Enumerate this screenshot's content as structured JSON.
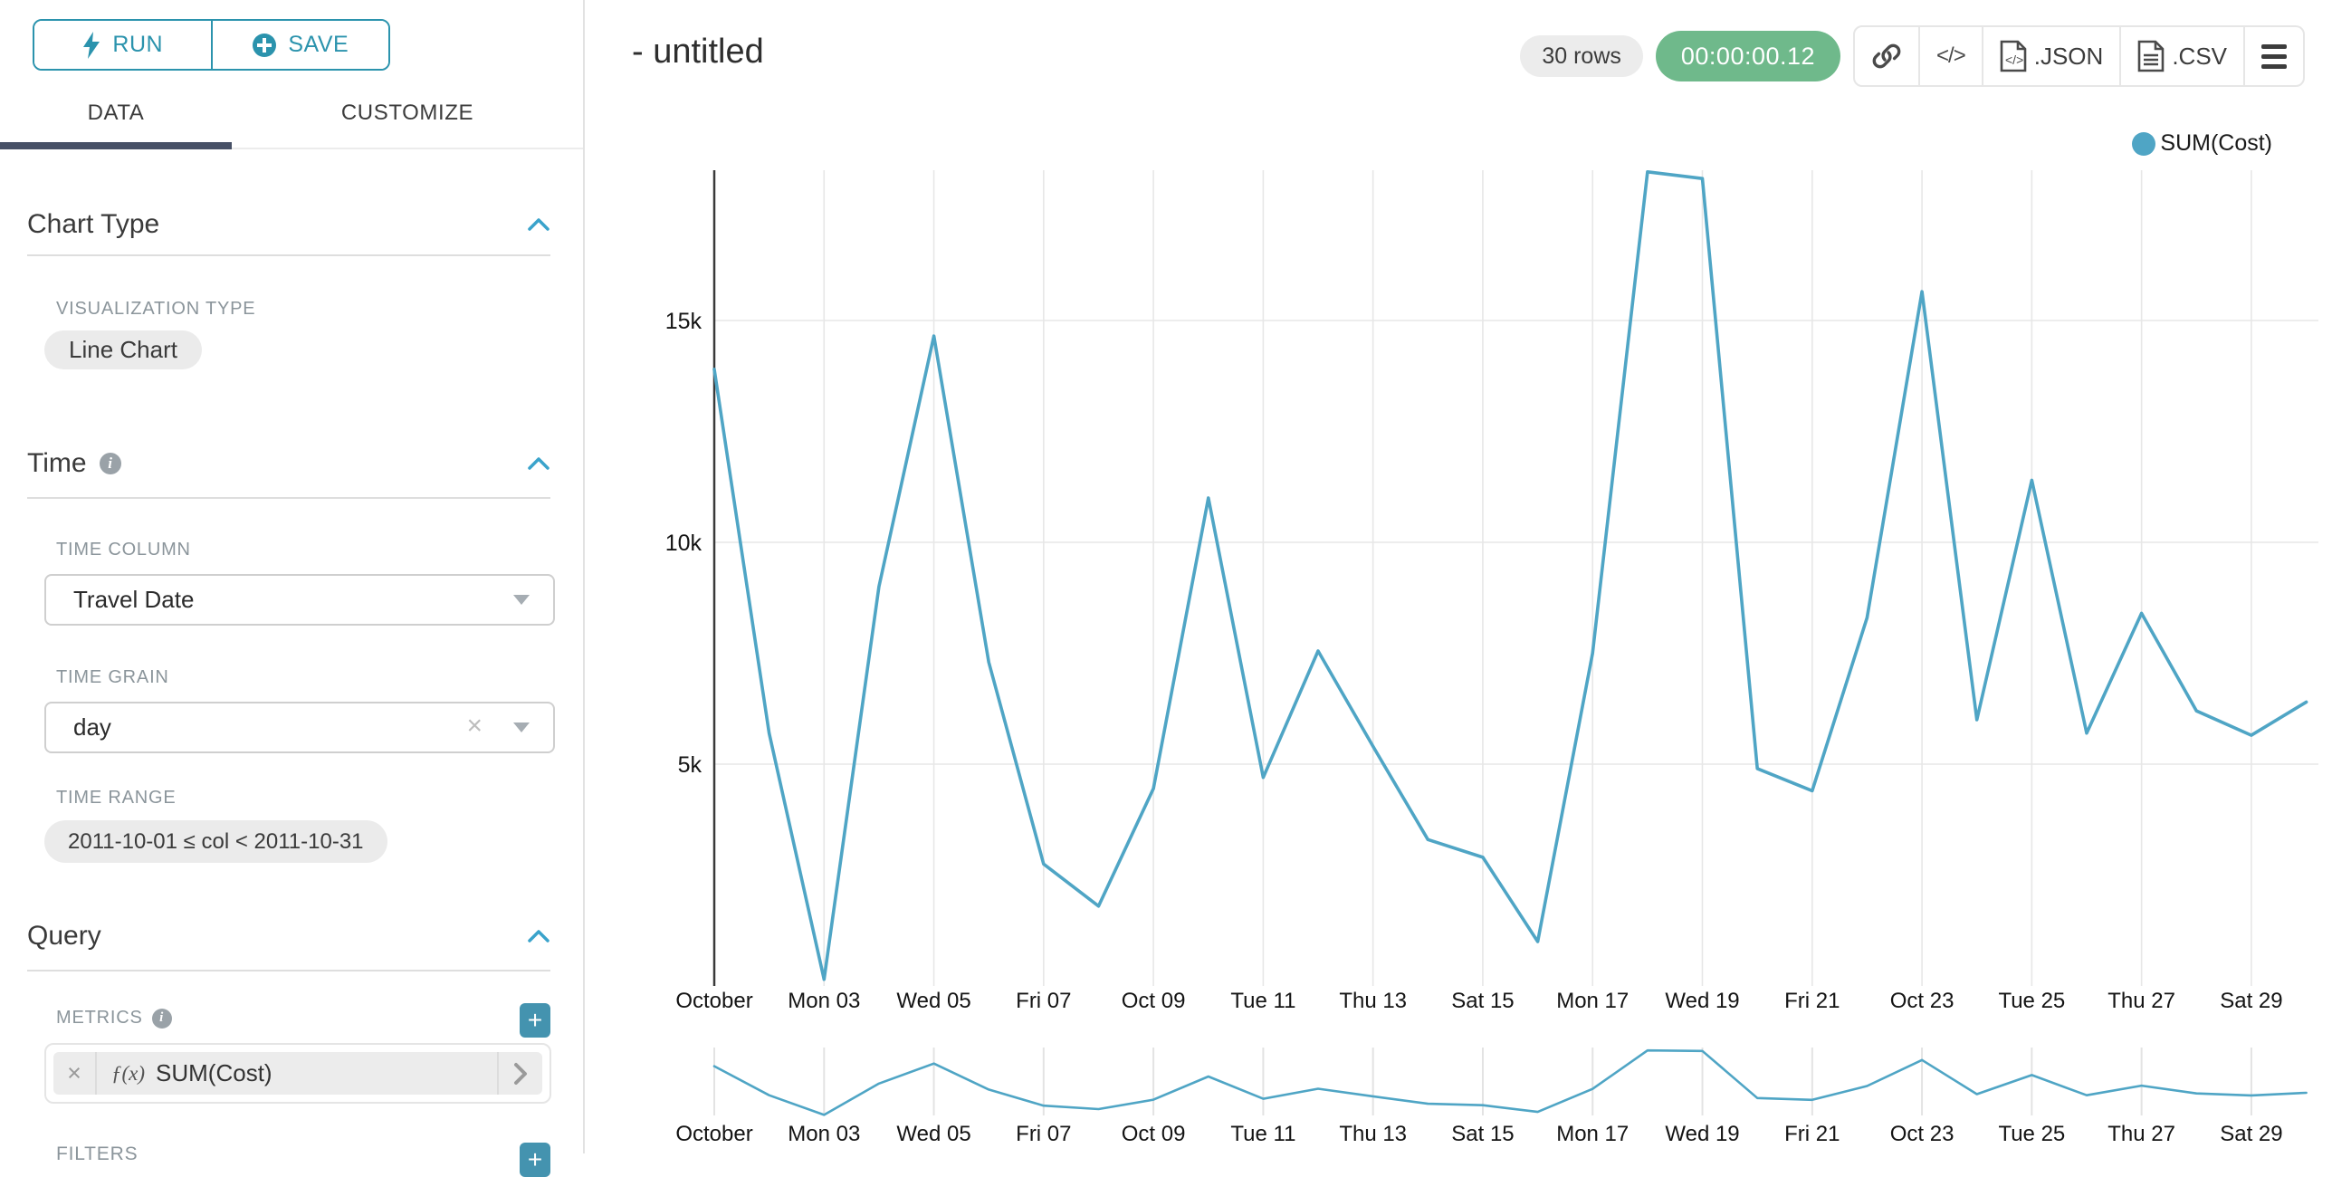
{
  "colors": {
    "accent_teal": "#2b93ad",
    "add_button_teal": "#4493af",
    "tab_underline_navy": "#475066",
    "timer_green": "#6fb98b",
    "series_line": "#4FA5C5"
  },
  "sidebar": {
    "run_button": {
      "label": "RUN"
    },
    "save_button": {
      "label": "SAVE"
    },
    "tabs": {
      "data": "DATA",
      "customize": "CUSTOMIZE"
    },
    "chart_type_section": {
      "title": "Chart Type",
      "visualization_type_label": "VISUALIZATION TYPE",
      "visualization_type_value": "Line Chart"
    },
    "time_section": {
      "title": "Time",
      "time_column_label": "TIME COLUMN",
      "time_column_value": "Travel Date",
      "time_grain_label": "TIME GRAIN",
      "time_grain_value": "day",
      "time_range_label": "TIME RANGE",
      "time_range_value": "2011-10-01 ≤ col < 2011-10-31"
    },
    "query_section": {
      "title": "Query",
      "metrics_label": "METRICS",
      "metric": {
        "prefix": "ƒ(x)",
        "name": "SUM(Cost)",
        "clear_glyph": "×"
      },
      "filters_label": "FILTERS",
      "add_glyph": "+"
    },
    "clear_glyph": "×"
  },
  "header": {
    "title": "- untitled",
    "row_count_badge": "30 rows",
    "timer_badge": "00:00:00.12",
    "toolbar": {
      "code_glyph": "</>",
      "json_label": ".JSON",
      "csv_label": ".CSV"
    }
  },
  "chart_data": {
    "type": "line",
    "title": "",
    "xlabel": "",
    "ylabel": "",
    "legend_position": "top-right",
    "grid": true,
    "has_range_brush_chart": true,
    "ylim": [
      0,
      18400
    ],
    "y_ticks": [
      {
        "label": "5k",
        "value": 5000
      },
      {
        "label": "10k",
        "value": 10000
      },
      {
        "label": "15k",
        "value": 15000
      }
    ],
    "x": [
      "2011-10-01",
      "2011-10-02",
      "2011-10-03",
      "2011-10-04",
      "2011-10-05",
      "2011-10-06",
      "2011-10-07",
      "2011-10-08",
      "2011-10-09",
      "2011-10-10",
      "2011-10-11",
      "2011-10-12",
      "2011-10-13",
      "2011-10-14",
      "2011-10-15",
      "2011-10-16",
      "2011-10-17",
      "2011-10-18",
      "2011-10-19",
      "2011-10-20",
      "2011-10-21",
      "2011-10-22",
      "2011-10-23",
      "2011-10-24",
      "2011-10-25",
      "2011-10-26",
      "2011-10-27",
      "2011-10-28",
      "2011-10-29",
      "2011-10-30"
    ],
    "x_tick_labels": [
      "October",
      "Mon 03",
      "Wed 05",
      "Fri 07",
      "Oct 09",
      "Tue 11",
      "Thu 13",
      "Sat 15",
      "Mon 17",
      "Wed 19",
      "Fri 21",
      "Oct 23",
      "Tue 25",
      "Thu 27",
      "Sat 29"
    ],
    "series": [
      {
        "name": "SUM(Cost)",
        "color": "#4FA5C5",
        "values": [
          13900,
          5700,
          150,
          9000,
          14650,
          7300,
          2750,
          1800,
          4450,
          11000,
          4700,
          7550,
          5400,
          3300,
          2900,
          1000,
          7500,
          18350,
          18200,
          4900,
          4400,
          8300,
          15650,
          6000,
          11400,
          5700,
          8400,
          6200,
          5650,
          6400
        ]
      }
    ]
  }
}
